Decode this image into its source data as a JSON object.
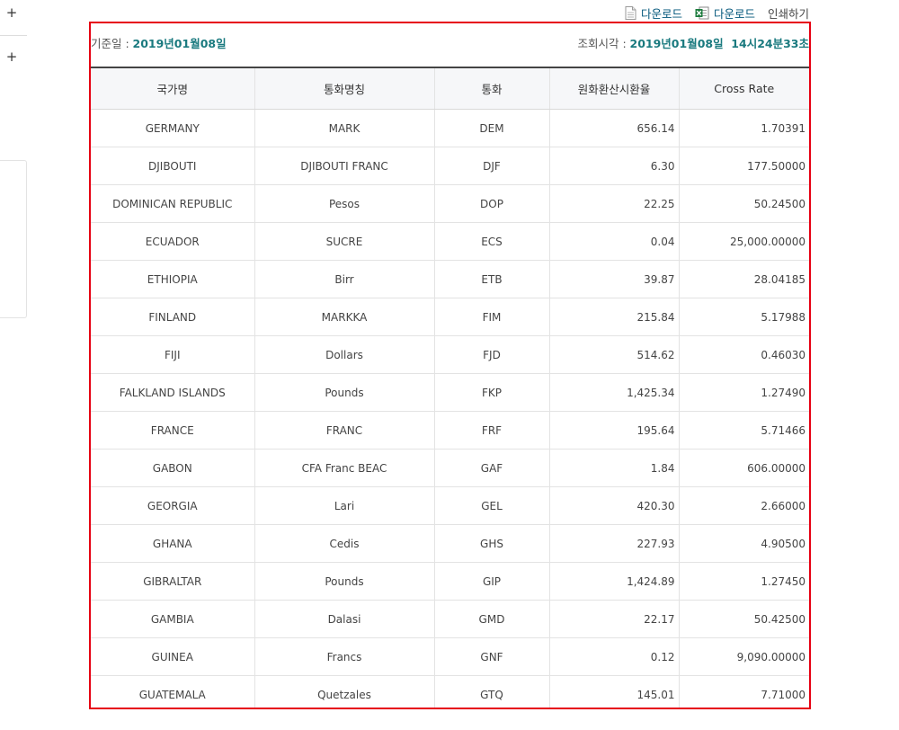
{
  "sidebar": {
    "expand_icon_1": "+",
    "expand_icon_2": "+"
  },
  "toolbar": {
    "download_label": "다운로드",
    "excel_download_label": "다운로드",
    "print_label": "인쇄하기"
  },
  "meta": {
    "base_date_label": "기준일 :",
    "base_date_value": "2019년01월08일",
    "query_time_label": "조회시각 :",
    "query_time_value": "2019년01월08일  14시24분33초"
  },
  "table": {
    "headers": [
      "국가명",
      "통화명칭",
      "통화",
      "원화환산시환율",
      "Cross Rate"
    ],
    "rows": [
      [
        "GERMANY",
        "MARK",
        "DEM",
        "656.14",
        "1.70391"
      ],
      [
        "DJIBOUTI",
        "DJIBOUTI FRANC",
        "DJF",
        "6.30",
        "177.50000"
      ],
      [
        "DOMINICAN REPUBLIC",
        "Pesos",
        "DOP",
        "22.25",
        "50.24500"
      ],
      [
        "ECUADOR",
        "SUCRE",
        "ECS",
        "0.04",
        "25,000.00000"
      ],
      [
        "ETHIOPIA",
        "Birr",
        "ETB",
        "39.87",
        "28.04185"
      ],
      [
        "FINLAND",
        "MARKKA",
        "FIM",
        "215.84",
        "5.17988"
      ],
      [
        "FIJI",
        "Dollars",
        "FJD",
        "514.62",
        "0.46030"
      ],
      [
        "FALKLAND ISLANDS",
        "Pounds",
        "FKP",
        "1,425.34",
        "1.27490"
      ],
      [
        "FRANCE",
        "FRANC",
        "FRF",
        "195.64",
        "5.71466"
      ],
      [
        "GABON",
        "CFA Franc BEAC",
        "GAF",
        "1.84",
        "606.00000"
      ],
      [
        "GEORGIA",
        "Lari",
        "GEL",
        "420.30",
        "2.66000"
      ],
      [
        "GHANA",
        "Cedis",
        "GHS",
        "227.93",
        "4.90500"
      ],
      [
        "GIBRALTAR",
        "Pounds",
        "GIP",
        "1,424.89",
        "1.27450"
      ],
      [
        "GAMBIA",
        "Dalasi",
        "GMD",
        "22.17",
        "50.42500"
      ],
      [
        "GUINEA",
        "Francs",
        "GNF",
        "0.12",
        "9,090.00000"
      ],
      [
        "GUATEMALA",
        "Quetzales",
        "GTQ",
        "145.01",
        "7.71000"
      ]
    ]
  },
  "icons": {
    "document": "document-icon",
    "excel": "excel-icon",
    "expand": "plus-icon"
  },
  "colors": {
    "highlight_border": "#e60012",
    "date_value": "#1a7a7f",
    "link": "#00557a"
  }
}
